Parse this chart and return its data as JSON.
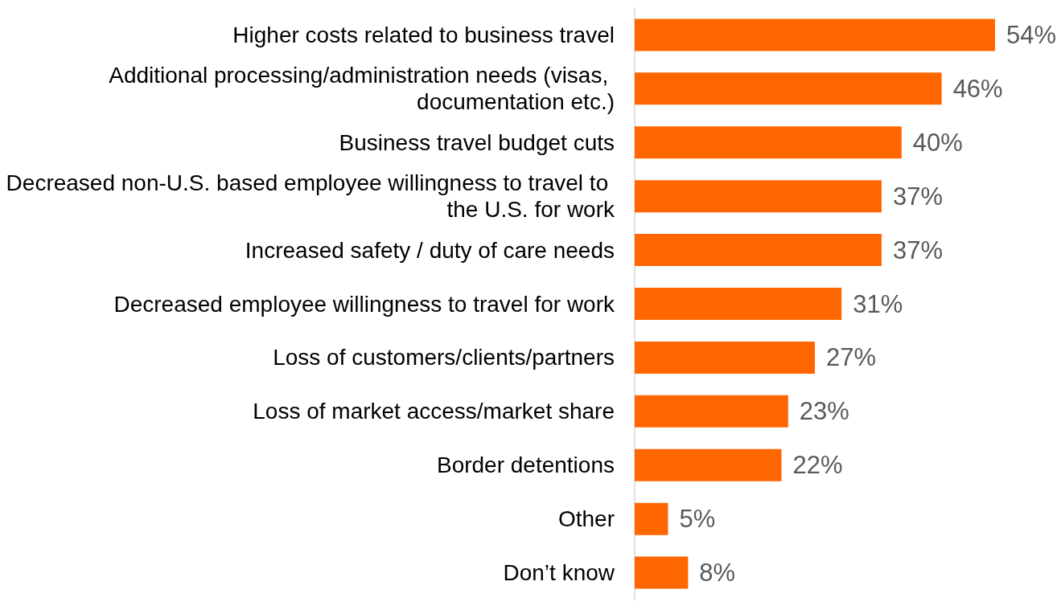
{
  "chart_data": {
    "type": "bar",
    "orientation": "horizontal",
    "categories": [
      "Higher costs related to business travel",
      "Additional processing/administration needs (visas, documentation etc.)",
      "Business travel budget cuts",
      "Decreased non-U.S. based employee willingness to travel to the U.S. for work",
      "Increased safety / duty of care needs",
      "Decreased employee willingness to travel for work",
      "Loss of customers/clients/partners",
      "Loss of market access/market share",
      "Border detentions",
      "Other",
      "Don’t know"
    ],
    "values": [
      54,
      46,
      40,
      37,
      37,
      31,
      27,
      23,
      22,
      5,
      8
    ],
    "value_labels": [
      "54%",
      "46%",
      "40%",
      "37%",
      "37%",
      "31%",
      "27%",
      "23%",
      "22%",
      "5%",
      "8%"
    ],
    "color": "#ff6600"
  }
}
